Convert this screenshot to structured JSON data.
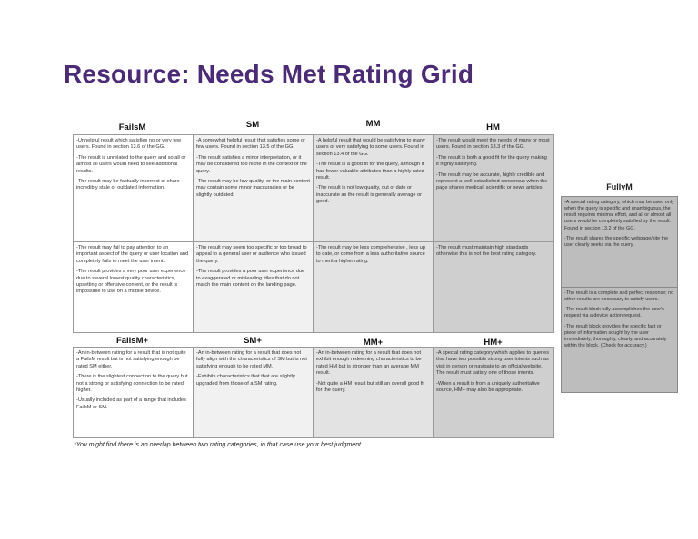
{
  "title": "Resource: Needs Met Rating Grid",
  "top_headers": [
    "FailsM",
    "SM",
    "MM",
    "HM"
  ],
  "plus_headers": [
    "FailsM+",
    "SM+",
    "MM+",
    "HM+"
  ],
  "row1": [
    [
      "-Unhelpful result which satisfies no or very few users. Found in section 13.6 of the GG.",
      "-The result is unrelated to the query and so all or almost all users would need to see additional results.",
      "-The result may be factually incorrect or share incredibly stale or outdated information."
    ],
    [
      "-A somewhat helpful result that satisfies some or few users. Found in section 13.5 of the GG.",
      "-The result satisfies a minor interpretation, or it may be considered too niche in the context of the query.",
      "-The result may be low quality, or the main content may contain some minor inaccuracies or be slightly outdated."
    ],
    [
      "-A helpful result that would be satisfying to many users or very satisfying to some users. Found in section 13.4 of the GG.",
      "-The result is a good fit for the query, although it has fewer valuable attributes than a highly rated result.",
      "-The result is not low quality, out of date or inaccurate as the result is generally average or good."
    ],
    [
      "-The result would meet the needs of many or most users. Found in section 13.3 of the GG.",
      "-The result is both a good fit for the query making it highly satisfying.",
      "-The result may be accurate, highly credible and represent a well-established consensus when the page shares medical, scientific or news articles."
    ]
  ],
  "row2": [
    [
      "-The result may fail to pay attention to an important aspect of the query or user location and completely fails to meet the user intent.",
      "-The result provides a very poor user experience due to several lowest quality characteristics, upsetting or offensive content, or the result is impossible to use on a mobile device."
    ],
    [
      "-The result may seem too specific or too broad to appeal to a general user or audience who issued the query.",
      "-The result provides a poor user experience due to exaggerated or misleading titles that do not match the main content on the landing page."
    ],
    [
      "-The result may be less comprehensive , less up to date, or come from a less authoritative source to merit a higher rating."
    ],
    [
      "-The result must maintain high standards otherwise this is not the best rating category."
    ]
  ],
  "row3": [
    [
      "-An in-between rating for a result that is not quite a FailsM result but is not satisfying enough be rated SM either.",
      "-There is the slightest connection to the query but not a strong or satisfying connection to be rated higher.",
      "-Usually included as part of a range that includes FailsM or SM."
    ],
    [
      "-An in-between rating for a result that does not fully align with the characteristics of SM but is not satisfying enough to be rated MM.",
      "-Exhibits characteristics that that are slightly upgraded from those of a SM rating."
    ],
    [
      "-An in-between rating for a result that does not exhibit enough redeeming characteristics to be rated HM but is stronger than an average MM result.",
      "-Not quite a HM result but still an overall good fit for the query."
    ],
    [
      "-A special rating category which applies to queries that have two possible strong user intents such as visit in person or navigate to an official website. The result must satisfy one of those intents.",
      "-When a result is from a uniquely authoritative source, HM+ may also be appropriate."
    ]
  ],
  "fullym": {
    "header": "FullyM",
    "block1": [
      "-A special rating category, which may be used only when the query is specific and unambiguous, the result requires minimal effort, and all or almost all users would be completely satisfied by the result. Found in section 13.2 of the GG.",
      "-The result shares the specific webpage/site the user clearly seeks via the query."
    ],
    "block2": [
      "-The result is a complete and perfect response; no other results are necessary to satisfy users.",
      "-The result block fully accomplishes the user's request via a device action request.",
      "-The result block provides the specific fact or piece of information sought by the user immediately, thoroughly, clearly, and accurately within the block. (Check for accuracy.)"
    ]
  },
  "footnote": "*You might find there is an overlap between two rating categories, in that case use your best judgment",
  "colors": {
    "title": "#4b2a78",
    "fullym_bg": "#bdbdbd"
  }
}
